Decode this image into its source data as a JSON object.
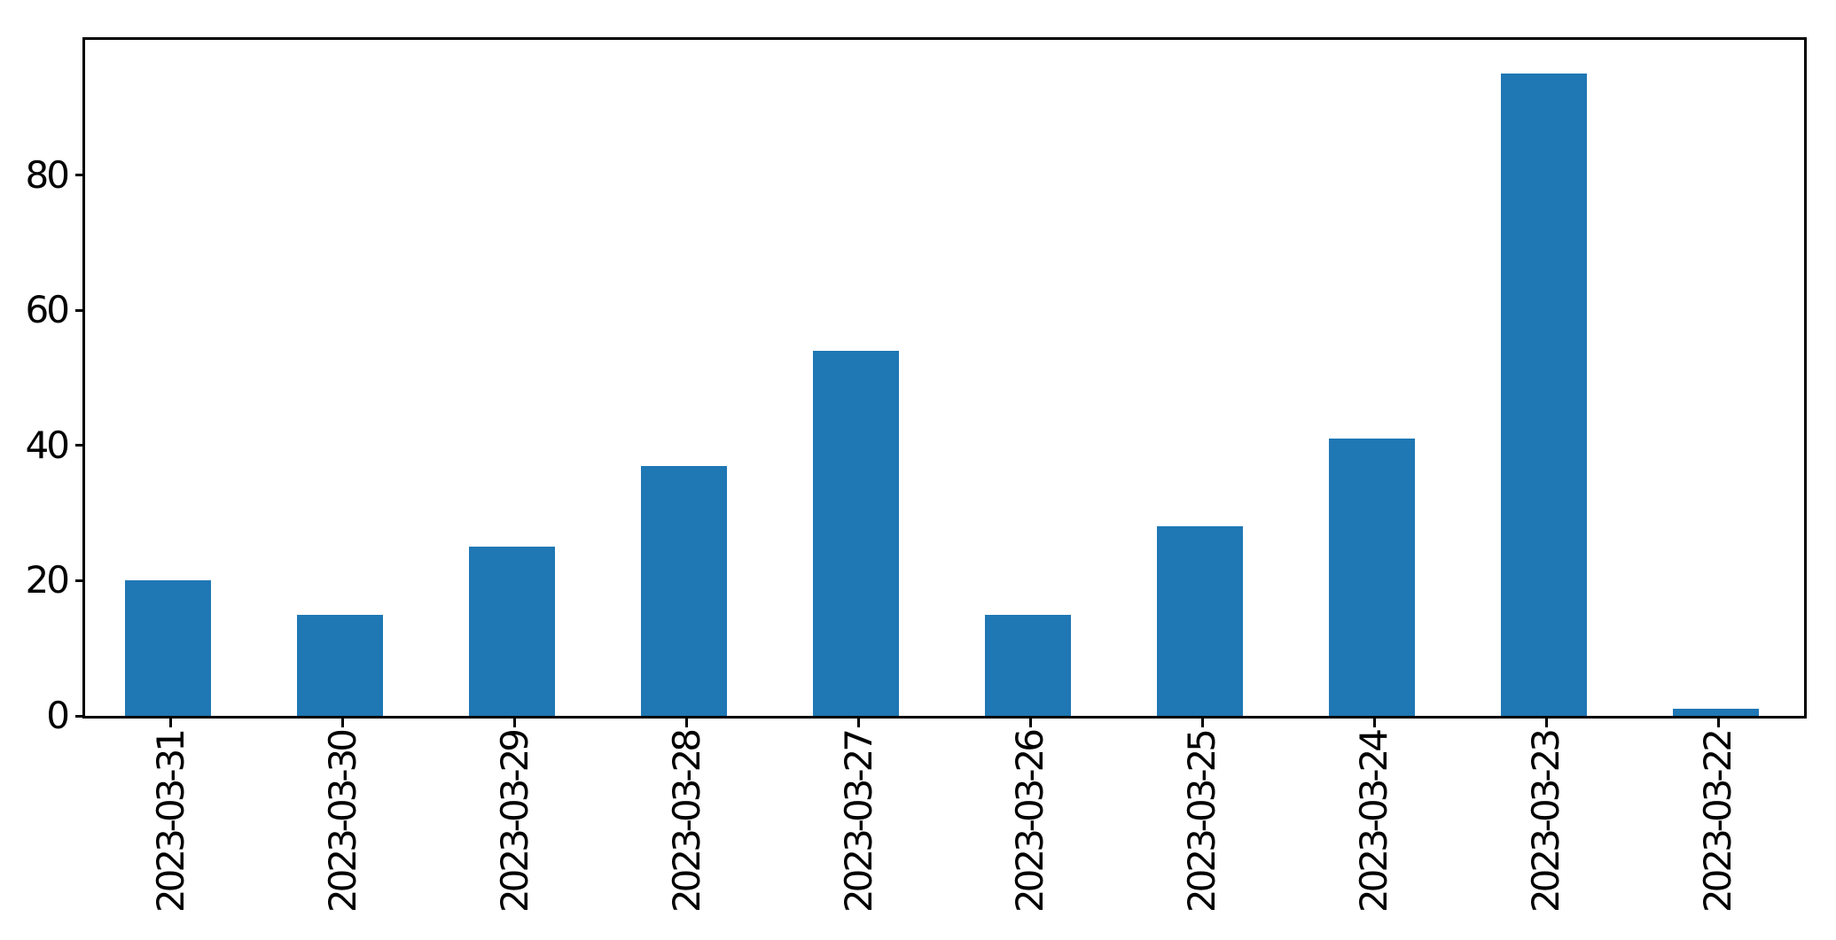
{
  "figure": {
    "background_color": "#ffffff",
    "spine_color": "#000000",
    "tick_color": "#000000",
    "label_color": "#000000"
  },
  "chart_data": {
    "type": "bar",
    "title": "",
    "xlabel": "",
    "ylabel": "",
    "categories": [
      "2023-03-31",
      "2023-03-30",
      "2023-03-29",
      "2023-03-28",
      "2023-03-27",
      "2023-03-26",
      "2023-03-25",
      "2023-03-24",
      "2023-03-23",
      "2023-03-22"
    ],
    "values": [
      20,
      15,
      25,
      37,
      54,
      15,
      28,
      41,
      95,
      1
    ],
    "bar_color": "#1f77b4",
    "yticks": [
      0,
      20,
      40,
      60,
      80
    ],
    "ylim": [
      0,
      100
    ],
    "x_tick_rotation": 90,
    "grid": false,
    "legend_position": "none"
  }
}
